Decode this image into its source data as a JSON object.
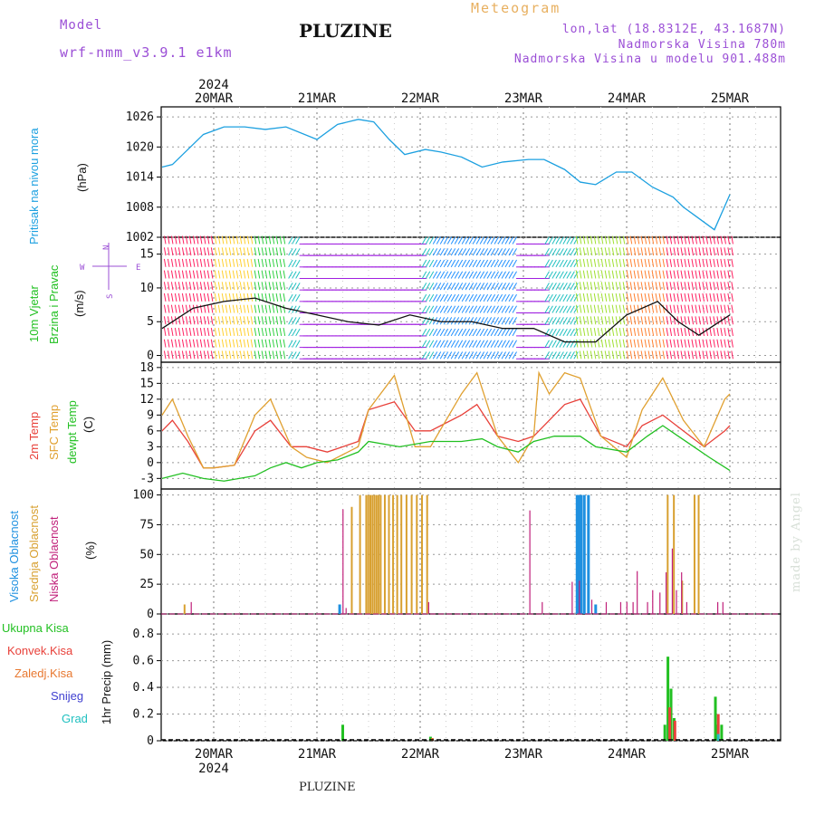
{
  "header": {
    "model_label": "Model",
    "model_name": "wrf-nmm_v3.9.1 e1km",
    "station": "PLUZINE",
    "meteogram": "Meteogram",
    "lonlat": "lon,lat (18.8312E, 43.1687N)",
    "elevation": "Nadmorska Visina 780m",
    "model_elevation": "Nadmorska Visina u modelu 901.488m",
    "footer_station": "PLUZINE",
    "watermark": "made by Angel"
  },
  "axis": {
    "year_top": "2024",
    "year_bottom": "2024",
    "dates": [
      "20MAR",
      "21MAR",
      "22MAR",
      "23MAR",
      "24MAR",
      "25MAR"
    ]
  },
  "panel_labels": {
    "pressure": "Pritisak na nivou mora",
    "pressure_unit": "(hPa)",
    "wind_1": "10m Vjetar",
    "wind_2": "Brzina i Pravac",
    "wind_unit": "(m/s)",
    "wind_compass": "N  S  E  W",
    "temp_1": "2m Temp",
    "temp_2": "SFC Temp",
    "temp_3": "dewpt Temp",
    "temp_unit": "(C)",
    "cloud_1": "Visoka Oblacnost",
    "cloud_2": "Srednja Oblacnost",
    "cloud_3": "Niska Oblacnost",
    "cloud_unit": "(%)",
    "precip_1": "Ukupna Kisa",
    "precip_2": "Konvek.Kisa",
    "precip_3": "Zaledj.Kisa",
    "precip_4": "Snijeg",
    "precip_5": "Grad",
    "precip_unit": "1hr Precip (mm)"
  },
  "colors": {
    "pressure": "#1ca0e0",
    "temp2m": "#e8413a",
    "sfc": "#e0a030",
    "dew": "#22c022",
    "high": "#1e90e0",
    "mid": "#d8a030",
    "low": "#c0207a",
    "rain": "#22c022",
    "conv": "#e8413a",
    "frz": "#e87830",
    "snow": "#4040d0",
    "grad": "#20c0c0",
    "header_purple": "#9b4fd6",
    "meteogram": "#e8b060"
  },
  "chart_data": [
    {
      "type": "line",
      "name": "pressure",
      "ylabel": "Pritisak na nivou mora (hPa)",
      "ylim": [
        1002,
        1028
      ],
      "yticks": [
        1002,
        1008,
        1014,
        1020,
        1026
      ],
      "x_days": [
        0,
        0.1,
        0.25,
        0.4,
        0.6,
        0.8,
        1.0,
        1.2,
        1.5,
        1.7,
        1.9,
        2.05,
        2.2,
        2.35,
        2.55,
        2.7,
        2.9,
        3.1,
        3.3,
        3.55,
        3.7,
        3.9,
        4.05,
        4.2,
        4.4,
        4.55,
        4.75,
        4.95,
        5.05,
        5.15,
        5.35,
        5.5
      ],
      "values": [
        1016,
        1016.5,
        1019.5,
        1022.5,
        1024,
        1024,
        1023.5,
        1024,
        1021.5,
        1024.5,
        1025.5,
        1025,
        1021.5,
        1018.5,
        1019.5,
        1019,
        1018,
        1016,
        1017,
        1017.5,
        1017.5,
        1015.5,
        1013,
        1012.5,
        1015,
        1015,
        1012,
        1010,
        1008,
        1006.5,
        1003.5,
        1010.5
      ]
    },
    {
      "type": "barb",
      "name": "10m wind",
      "ylabel": "10m Vjetar Brzina i Pravac (m/s)",
      "ylim": [
        -1,
        17.5
      ],
      "yticks": [
        0,
        5,
        10,
        15
      ],
      "x_days": [
        0,
        0.3,
        0.6,
        0.9,
        1.2,
        1.5,
        1.8,
        2.1,
        2.4,
        2.7,
        3.0,
        3.3,
        3.6,
        3.9,
        4.2,
        4.5,
        4.8,
        5.0,
        5.2,
        5.5
      ],
      "speed": [
        4,
        7,
        8,
        8.5,
        7,
        6,
        5,
        4.5,
        6,
        5,
        5,
        4,
        4,
        2,
        2,
        6,
        8,
        5,
        3,
        6
      ]
    },
    {
      "type": "line",
      "ylabel": "2m Temp / SFC Temp / dewpt Temp (C)",
      "ylim": [
        -5,
        19
      ],
      "yticks": [
        -3,
        0,
        3,
        6,
        9,
        12,
        15,
        18
      ],
      "series": [
        {
          "name": "2m Temp",
          "x_days": [
            0,
            0.1,
            0.25,
            0.4,
            0.5,
            0.7,
            0.9,
            1.05,
            1.25,
            1.4,
            1.6,
            1.9,
            2.0,
            2.25,
            2.45,
            2.6,
            2.9,
            3.05,
            3.25,
            3.45,
            3.6,
            3.9,
            4.05,
            4.25,
            4.5,
            4.65,
            4.85,
            5.05,
            5.25,
            5.45,
            5.5
          ],
          "values": [
            6,
            8,
            4,
            -1,
            -1,
            -0.5,
            6,
            8,
            3,
            3,
            2,
            4,
            10,
            11.5,
            6,
            6,
            9,
            11,
            5,
            4,
            5,
            11,
            12,
            5,
            3,
            7,
            9,
            6,
            3,
            6,
            7
          ]
        },
        {
          "name": "SFC Temp",
          "x_days": [
            0,
            0.1,
            0.25,
            0.4,
            0.5,
            0.7,
            0.9,
            1.05,
            1.25,
            1.4,
            1.6,
            1.9,
            2.0,
            2.25,
            2.45,
            2.6,
            2.9,
            3.05,
            3.25,
            3.45,
            3.6,
            3.65,
            3.75,
            3.9,
            4.05,
            4.25,
            4.5,
            4.65,
            4.85,
            5.05,
            5.25,
            5.45,
            5.5
          ],
          "values": [
            9,
            12,
            5,
            -1,
            -1,
            -0.5,
            9,
            12,
            3,
            1,
            0,
            3,
            10,
            16.5,
            3,
            3,
            13,
            17,
            5,
            0,
            5,
            17,
            13,
            17,
            16,
            5,
            1,
            10,
            16,
            8,
            3,
            12,
            13
          ]
        },
        {
          "name": "dewpt Temp",
          "x_days": [
            0,
            0.2,
            0.4,
            0.6,
            0.9,
            1.05,
            1.2,
            1.35,
            1.5,
            1.7,
            1.9,
            2.0,
            2.3,
            2.6,
            2.9,
            3.1,
            3.25,
            3.45,
            3.6,
            3.8,
            3.9,
            4.05,
            4.2,
            4.5,
            4.7,
            4.85,
            5.0,
            5.15,
            5.3,
            5.5
          ],
          "values": [
            -3,
            -2,
            -3,
            -3.5,
            -2.5,
            -1,
            0,
            -1,
            0,
            0.5,
            2,
            4,
            3,
            4,
            4,
            4.5,
            3,
            2,
            4,
            5,
            5,
            5,
            3,
            2,
            5,
            7,
            5,
            3,
            1,
            -1.5
          ]
        }
      ]
    },
    {
      "type": "bar",
      "ylabel": "Visoka / Srednja / Niska Oblacnost (%)",
      "ylim": [
        0,
        105
      ],
      "yticks": [
        0,
        25,
        50,
        75,
        100
      ],
      "series": [
        {
          "name": "Visoka Oblacnost",
          "x_days": [
            1.72,
            4.02,
            4.03,
            4.05,
            4.06,
            4.09,
            4.13,
            4.2
          ],
          "values": [
            8,
            100,
            100,
            100,
            100,
            100,
            100,
            8
          ]
        },
        {
          "name": "Srednja Oblacnost",
          "x_days": [
            0.2,
            1.82,
            1.9,
            1.96,
            1.98,
            2.0,
            2.02,
            2.04,
            2.06,
            2.08,
            2.1,
            2.14,
            2.18,
            2.22,
            2.26,
            2.3,
            2.35,
            2.4,
            2.45,
            2.5,
            2.55,
            4.88,
            4.94,
            5.02,
            5.14,
            5.18
          ],
          "values": [
            8,
            90,
            100,
            100,
            100,
            100,
            100,
            100,
            100,
            100,
            100,
            100,
            100,
            100,
            100,
            100,
            100,
            100,
            100,
            100,
            100,
            100,
            100,
            28,
            100,
            100
          ]
        },
        {
          "name": "Niska Oblacnost",
          "x_days": [
            0.3,
            1.77,
            1.8,
            2.6,
            3.58,
            3.7,
            3.99,
            4.06,
            4.18,
            4.32,
            4.46,
            4.52,
            4.58,
            4.62,
            4.72,
            4.77,
            4.84,
            4.9,
            4.96,
            5.0,
            5.05,
            5.1,
            5.4,
            5.45
          ],
          "values": [
            10,
            88,
            5,
            10,
            87,
            10,
            27,
            28,
            12,
            10,
            10,
            10,
            10,
            36,
            10,
            20,
            18,
            35,
            55,
            20,
            35,
            10,
            10,
            10
          ]
        }
      ]
    },
    {
      "type": "bar",
      "ylabel": "1hr Precip (mm)",
      "ylim": [
        0,
        0.95
      ],
      "yticks": [
        0,
        0.2,
        0.4,
        0.6,
        0.8
      ],
      "series": [
        {
          "name": "Ukupna Kisa",
          "x_days": [
            1.75,
            2.6,
            4.87,
            4.9,
            4.93,
            4.96,
            5.36,
            5.38,
            5.42
          ],
          "values": [
            0.12,
            0.03,
            0.12,
            0.63,
            0.39,
            0.17,
            0.33,
            0.12,
            0.12
          ]
        },
        {
          "name": "Konvek.Kisa",
          "x_days": [
            4.9,
            4.95,
            5.37
          ],
          "values": [
            0.25,
            0.15,
            0.2
          ]
        },
        {
          "name": "Zaledj.Kisa",
          "x_days": [
            2.6
          ],
          "values": [
            0.02
          ]
        },
        {
          "name": "Snijeg",
          "x_days": [],
          "values": []
        },
        {
          "name": "Grad",
          "x_days": [
            5.37
          ],
          "values": [
            0.05
          ]
        }
      ]
    }
  ]
}
